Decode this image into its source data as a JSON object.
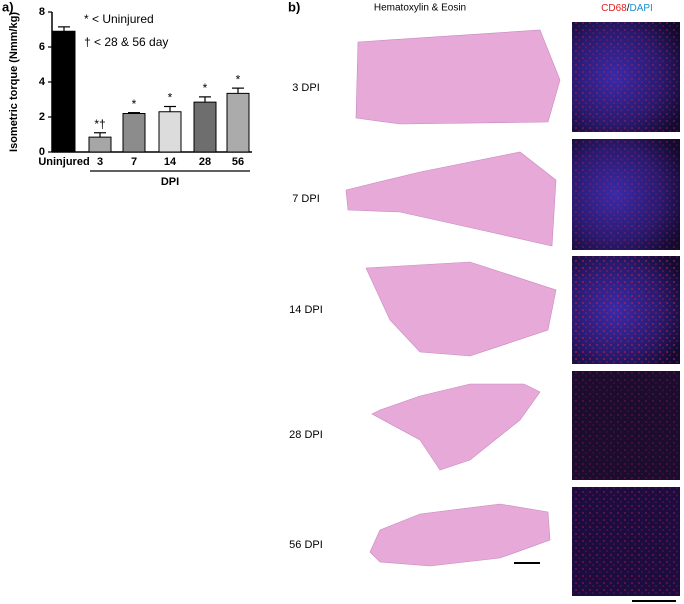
{
  "chart_data": {
    "type": "bar",
    "panel_label": "a)",
    "y_label": "Isometric torque (Nmm/kg)",
    "x_label": "DPI",
    "categories": [
      "Uninjured",
      "3",
      "7",
      "14",
      "28",
      "56"
    ],
    "values": [
      6.9,
      0.85,
      2.2,
      2.3,
      2.85,
      3.35
    ],
    "errors": [
      0.25,
      0.25,
      0.05,
      0.3,
      0.3,
      0.3
    ],
    "colors": [
      "#000000",
      "#a6a6a6",
      "#8c8c8c",
      "#dcdcdc",
      "#6e6e6e",
      "#ababab"
    ],
    "significance": [
      null,
      "*†",
      "*",
      "*",
      "*",
      "*"
    ],
    "legend": [
      "* < Uninjured",
      "† < 28 & 56 day"
    ],
    "ylim": [
      0,
      8
    ],
    "yticks": [
      0,
      2,
      4,
      6,
      8
    ]
  },
  "histology": {
    "panel_label": "b)",
    "he_title": "Hematoxylin & Eosin",
    "if_title": [
      "CD68",
      "/",
      "DAPI"
    ],
    "rows": [
      "3 DPI",
      "7 DPI",
      "14 DPI",
      "28 DPI",
      "56 DPI"
    ]
  }
}
